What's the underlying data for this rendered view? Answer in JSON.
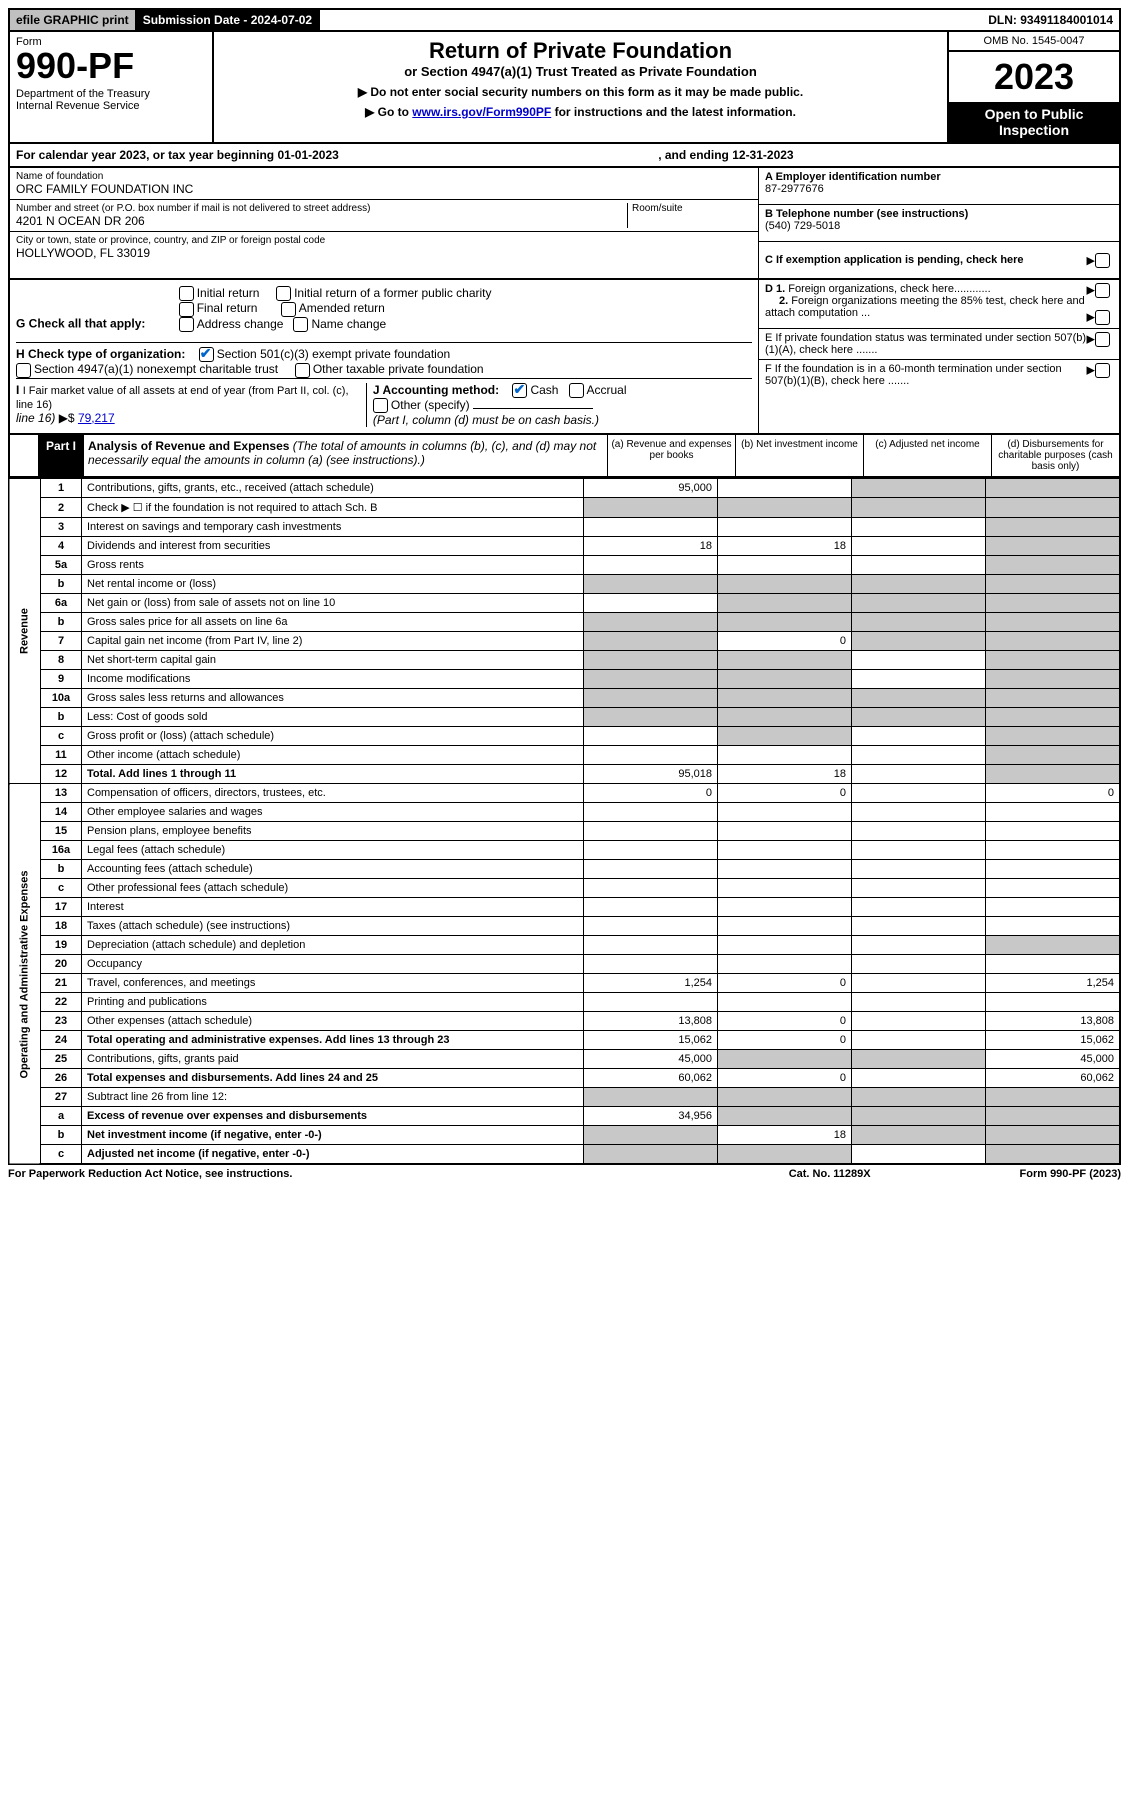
{
  "topbar": {
    "efile": "efile GRAPHIC print",
    "subdate_label": "Submission Date - 2024-07-02",
    "dln": "DLN: 93491184001014"
  },
  "header": {
    "form_label": "Form",
    "form_number": "990-PF",
    "dept": "Department of the Treasury\nInternal Revenue Service",
    "title": "Return of Private Foundation",
    "subtitle": "or Section 4947(a)(1) Trust Treated as Private Foundation",
    "bullet1": "▶ Do not enter social security numbers on this form as it may be made public.",
    "bullet2_pre": "▶ Go to ",
    "bullet2_link": "www.irs.gov/Form990PF",
    "bullet2_post": " for instructions and the latest information.",
    "omb": "OMB No. 1545-0047",
    "year": "2023",
    "open": "Open to Public Inspection"
  },
  "cal_year": {
    "pre": "For calendar year 2023, or tax year beginning 01-01-2023",
    "mid": ", and ending 12-31-2023"
  },
  "info": {
    "name_label": "Name of foundation",
    "name": "ORC FAMILY FOUNDATION INC",
    "addr_label": "Number and street (or P.O. box number if mail is not delivered to street address)",
    "addr": "4201 N OCEAN DR 206",
    "room_label": "Room/suite",
    "city_label": "City or town, state or province, country, and ZIP or foreign postal code",
    "city": "HOLLYWOOD, FL  33019",
    "ein_label": "A Employer identification number",
    "ein": "87-2977676",
    "tel_label": "B Telephone number (see instructions)",
    "tel": "(540) 729-5018",
    "c_label": "C If exemption application is pending, check here"
  },
  "checks": {
    "g_label": "G Check all that apply:",
    "g_opts": [
      "Initial return",
      "Initial return of a former public charity",
      "Final return",
      "Amended return",
      "Address change",
      "Name change"
    ],
    "h_label": "H Check type of organization:",
    "h_501c3": "Section 501(c)(3) exempt private foundation",
    "h_4947": "Section 4947(a)(1) nonexempt charitable trust",
    "h_other": "Other taxable private foundation",
    "i_label": "I Fair market value of all assets at end of year (from Part II, col. (c), line 16)",
    "i_arrow": "▶$",
    "i_val": "79,217",
    "j_label": "J Accounting method:",
    "j_cash": "Cash",
    "j_accrual": "Accrual",
    "j_other": "Other (specify)",
    "j_note": "(Part I, column (d) must be on cash basis.)",
    "d1": "D 1. Foreign organizations, check here............",
    "d2": "2. Foreign organizations meeting the 85% test, check here and attach computation ...",
    "e_label": "E  If private foundation status was terminated under section 507(b)(1)(A), check here .......",
    "f_label": "F  If the foundation is in a 60-month termination under section 507(b)(1)(B), check here ......."
  },
  "part1": {
    "label": "Part I",
    "title": "Analysis of Revenue and Expenses",
    "title_note": " (The total of amounts in columns (b), (c), and (d) may not necessarily equal the amounts in column (a) (see instructions).)",
    "col_a": "(a) Revenue and expenses per books",
    "col_b": "(b) Net investment income",
    "col_c": "(c) Adjusted net income",
    "col_d": "(d) Disbursements for charitable purposes (cash basis only)"
  },
  "side_rev": "Revenue",
  "side_exp": "Operating and Administrative Expenses",
  "rows": [
    {
      "n": "1",
      "desc": "Contributions, gifts, grants, etc., received (attach schedule)",
      "a": "95,000",
      "b": "",
      "c": "",
      "d": "",
      "c_grey": true,
      "d_grey": true
    },
    {
      "n": "2",
      "desc": "Check ▶ ☐ if the foundation is not required to attach Sch. B",
      "a": "",
      "b": "",
      "c": "",
      "d": "",
      "a_grey": true,
      "b_grey": true,
      "c_grey": true,
      "d_grey": true,
      "bold_not": true
    },
    {
      "n": "3",
      "desc": "Interest on savings and temporary cash investments",
      "a": "",
      "b": "",
      "c": "",
      "d": "",
      "d_grey": true
    },
    {
      "n": "4",
      "desc": "Dividends and interest from securities",
      "a": "18",
      "b": "18",
      "c": "",
      "d": "",
      "d_grey": true
    },
    {
      "n": "5a",
      "desc": "Gross rents",
      "a": "",
      "b": "",
      "c": "",
      "d": "",
      "d_grey": true
    },
    {
      "n": "b",
      "desc": "Net rental income or (loss)",
      "a": "",
      "b": "",
      "c": "",
      "d": "",
      "a_grey": true,
      "b_grey": true,
      "c_grey": true,
      "d_grey": true,
      "inset": true
    },
    {
      "n": "6a",
      "desc": "Net gain or (loss) from sale of assets not on line 10",
      "a": "",
      "b": "",
      "c": "",
      "d": "",
      "b_grey": true,
      "c_grey": true,
      "d_grey": true
    },
    {
      "n": "b",
      "desc": "Gross sales price for all assets on line 6a",
      "a": "",
      "b": "",
      "c": "",
      "d": "",
      "a_grey": true,
      "b_grey": true,
      "c_grey": true,
      "d_grey": true,
      "inset": true
    },
    {
      "n": "7",
      "desc": "Capital gain net income (from Part IV, line 2)",
      "a": "",
      "b": "0",
      "c": "",
      "d": "",
      "a_grey": true,
      "c_grey": true,
      "d_grey": true
    },
    {
      "n": "8",
      "desc": "Net short-term capital gain",
      "a": "",
      "b": "",
      "c": "",
      "d": "",
      "a_grey": true,
      "b_grey": true,
      "d_grey": true
    },
    {
      "n": "9",
      "desc": "Income modifications",
      "a": "",
      "b": "",
      "c": "",
      "d": "",
      "a_grey": true,
      "b_grey": true,
      "d_grey": true
    },
    {
      "n": "10a",
      "desc": "Gross sales less returns and allowances",
      "a": "",
      "b": "",
      "c": "",
      "d": "",
      "a_grey": true,
      "b_grey": true,
      "c_grey": true,
      "d_grey": true,
      "inset": true
    },
    {
      "n": "b",
      "desc": "Less: Cost of goods sold",
      "a": "",
      "b": "",
      "c": "",
      "d": "",
      "a_grey": true,
      "b_grey": true,
      "c_grey": true,
      "d_grey": true
    },
    {
      "n": "c",
      "desc": "Gross profit or (loss) (attach schedule)",
      "a": "",
      "b": "",
      "c": "",
      "d": "",
      "b_grey": true,
      "d_grey": true
    },
    {
      "n": "11",
      "desc": "Other income (attach schedule)",
      "a": "",
      "b": "",
      "c": "",
      "d": "",
      "d_grey": true
    },
    {
      "n": "12",
      "desc": "Total. Add lines 1 through 11",
      "a": "95,018",
      "b": "18",
      "c": "",
      "d": "",
      "d_grey": true,
      "bold": true
    },
    {
      "n": "13",
      "desc": "Compensation of officers, directors, trustees, etc.",
      "a": "0",
      "b": "0",
      "c": "",
      "d": "0"
    },
    {
      "n": "14",
      "desc": "Other employee salaries and wages",
      "a": "",
      "b": "",
      "c": "",
      "d": ""
    },
    {
      "n": "15",
      "desc": "Pension plans, employee benefits",
      "a": "",
      "b": "",
      "c": "",
      "d": ""
    },
    {
      "n": "16a",
      "desc": "Legal fees (attach schedule)",
      "a": "",
      "b": "",
      "c": "",
      "d": ""
    },
    {
      "n": "b",
      "desc": "Accounting fees (attach schedule)",
      "a": "",
      "b": "",
      "c": "",
      "d": ""
    },
    {
      "n": "c",
      "desc": "Other professional fees (attach schedule)",
      "a": "",
      "b": "",
      "c": "",
      "d": ""
    },
    {
      "n": "17",
      "desc": "Interest",
      "a": "",
      "b": "",
      "c": "",
      "d": ""
    },
    {
      "n": "18",
      "desc": "Taxes (attach schedule) (see instructions)",
      "a": "",
      "b": "",
      "c": "",
      "d": ""
    },
    {
      "n": "19",
      "desc": "Depreciation (attach schedule) and depletion",
      "a": "",
      "b": "",
      "c": "",
      "d": "",
      "d_grey": true
    },
    {
      "n": "20",
      "desc": "Occupancy",
      "a": "",
      "b": "",
      "c": "",
      "d": ""
    },
    {
      "n": "21",
      "desc": "Travel, conferences, and meetings",
      "a": "1,254",
      "b": "0",
      "c": "",
      "d": "1,254"
    },
    {
      "n": "22",
      "desc": "Printing and publications",
      "a": "",
      "b": "",
      "c": "",
      "d": ""
    },
    {
      "n": "23",
      "desc": "Other expenses (attach schedule)",
      "a": "13,808",
      "b": "0",
      "c": "",
      "d": "13,808"
    },
    {
      "n": "24",
      "desc": "Total operating and administrative expenses. Add lines 13 through 23",
      "a": "15,062",
      "b": "0",
      "c": "",
      "d": "15,062",
      "bold": true
    },
    {
      "n": "25",
      "desc": "Contributions, gifts, grants paid",
      "a": "45,000",
      "b": "",
      "c": "",
      "d": "45,000",
      "b_grey": true,
      "c_grey": true
    },
    {
      "n": "26",
      "desc": "Total expenses and disbursements. Add lines 24 and 25",
      "a": "60,062",
      "b": "0",
      "c": "",
      "d": "60,062",
      "bold": true
    },
    {
      "n": "27",
      "desc": "Subtract line 26 from line 12:",
      "a": "",
      "b": "",
      "c": "",
      "d": "",
      "a_grey": true,
      "b_grey": true,
      "c_grey": true,
      "d_grey": true
    },
    {
      "n": "a",
      "desc": "Excess of revenue over expenses and disbursements",
      "a": "34,956",
      "b": "",
      "c": "",
      "d": "",
      "b_grey": true,
      "c_grey": true,
      "d_grey": true,
      "bold": true
    },
    {
      "n": "b",
      "desc": "Net investment income (if negative, enter -0-)",
      "a": "",
      "b": "18",
      "c": "",
      "d": "",
      "a_grey": true,
      "c_grey": true,
      "d_grey": true,
      "bold": true
    },
    {
      "n": "c",
      "desc": "Adjusted net income (if negative, enter -0-)",
      "a": "",
      "b": "",
      "c": "",
      "d": "",
      "a_grey": true,
      "b_grey": true,
      "d_grey": true,
      "bold": true
    }
  ],
  "footer": {
    "left": "For Paperwork Reduction Act Notice, see instructions.",
    "mid": "Cat. No. 11289X",
    "right": "Form 990-PF (2023)"
  }
}
